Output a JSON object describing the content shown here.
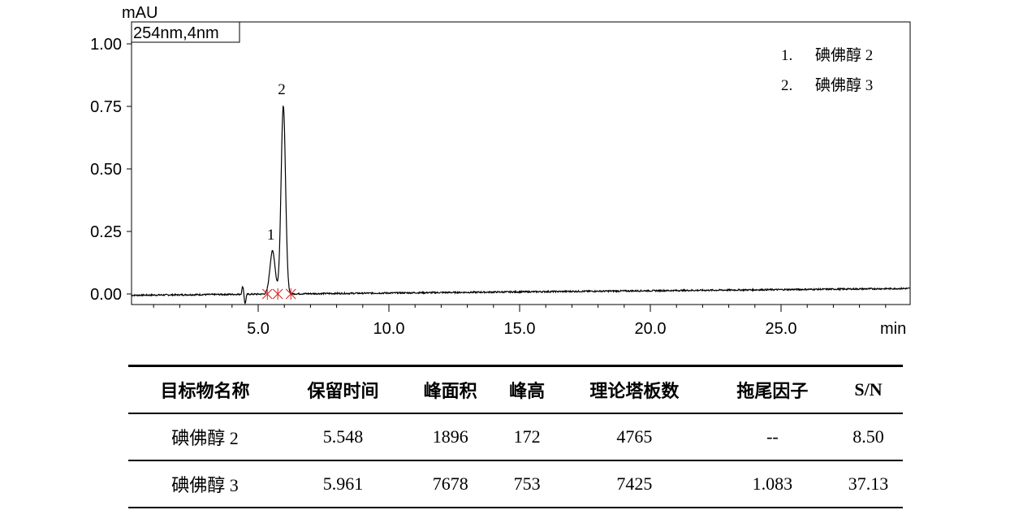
{
  "chart_data": {
    "type": "line",
    "y_unit_label": "mAU",
    "x_unit_label": "min",
    "detector_label": "254nm,4nm",
    "xlim": [
      0,
      30
    ],
    "ylim": [
      -0.05,
      1.05
    ],
    "x_ticks": [
      5.0,
      10.0,
      15.0,
      20.0,
      25.0
    ],
    "x_tick_labels": [
      "5.0",
      "10.0",
      "15.0",
      "20.0",
      "25.0"
    ],
    "y_ticks": [
      0.0,
      0.25,
      0.5,
      0.75,
      1.0
    ],
    "y_tick_labels": [
      "0.00",
      "0.25",
      "0.50",
      "0.75",
      "1.00"
    ],
    "grid": false,
    "legend_position": "top-right",
    "legend": [
      {
        "num": "1.",
        "name": "碘佛醇 2"
      },
      {
        "num": "2.",
        "name": "碘佛醇 3"
      }
    ],
    "peaks": [
      {
        "label": "1",
        "retention_time": 5.548,
        "height": 0.172,
        "sigma": 0.1
      },
      {
        "label": "2",
        "retention_time": 5.961,
        "height": 0.753,
        "sigma": 0.085
      }
    ],
    "baseline": {
      "start": -0.005,
      "end": 0.022,
      "noise": 0.003
    },
    "system_peak": {
      "x": 4.45,
      "up": 0.032,
      "down": -0.038
    },
    "integration_markers": [
      5.35,
      5.75,
      6.25
    ],
    "series": [
      {
        "x": [
          0,
          4.3,
          4.45,
          4.55,
          5.2,
          5.548,
          5.8,
          5.961,
          6.3,
          10,
          15,
          20,
          25,
          30
        ],
        "values": [
          -0.005,
          -0.003,
          0.032,
          -0.038,
          0.0,
          0.172,
          0.02,
          0.753,
          0.005,
          0.002,
          0.006,
          0.01,
          0.016,
          0.022
        ]
      }
    ]
  },
  "table": {
    "headers": [
      "目标物名称",
      "保留时间",
      "峰面积",
      "峰高",
      "理论塔板数",
      "拖尾因子",
      "S/N"
    ],
    "rows": [
      [
        "碘佛醇 2",
        "5.548",
        "1896",
        "172",
        "4765",
        "--",
        "8.50"
      ],
      [
        "碘佛醇 3",
        "5.961",
        "7678",
        "753",
        "7425",
        "1.083",
        "37.13"
      ]
    ]
  },
  "colors": {
    "trace": "#000000",
    "marker": "#d22020",
    "axis": "#000000"
  }
}
